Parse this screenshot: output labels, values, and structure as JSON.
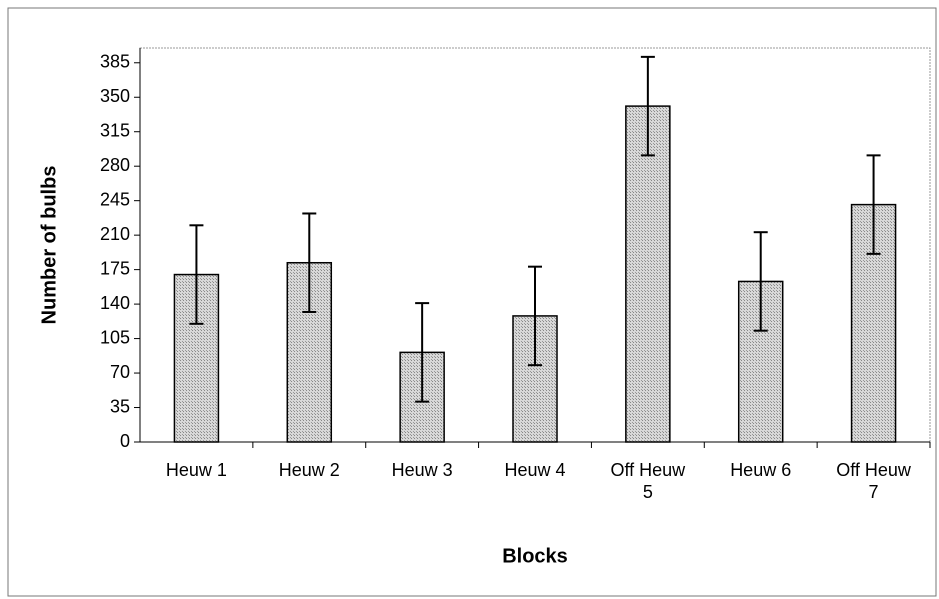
{
  "chart_data": {
    "type": "bar",
    "x_label": "Blocks",
    "y_label": "Number of bulbs",
    "categories": [
      "Heuw 1",
      "Heuw 2",
      "Heuw 3",
      "Heuw 4",
      "Off Heuw 5",
      "Heuw 6",
      "Off Heuw 7"
    ],
    "values": [
      170,
      182,
      91,
      128,
      341,
      163,
      241
    ],
    "errors": [
      50,
      50,
      50,
      50,
      50,
      50,
      50
    ],
    "color": "#c4c4c4",
    "ylim": [
      0,
      400
    ],
    "yticks": [
      0,
      35,
      70,
      105,
      140,
      175,
      210,
      245,
      280,
      315,
      350,
      385
    ],
    "grid": false
  }
}
